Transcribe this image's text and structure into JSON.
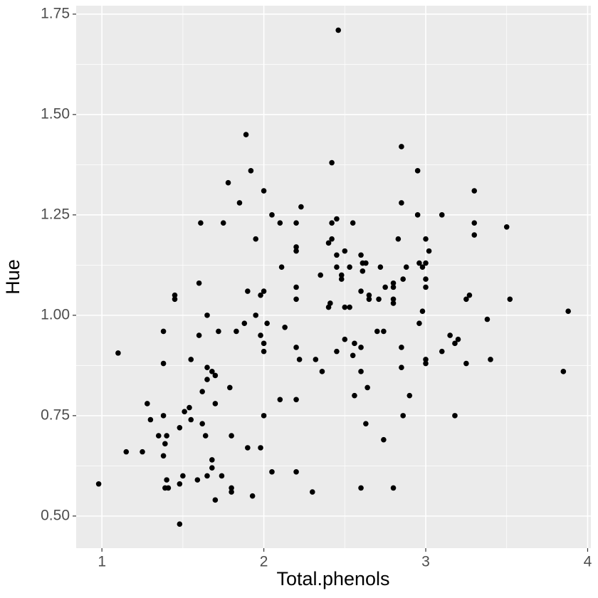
{
  "chart_data": {
    "type": "scatter",
    "x_label": "Total.phenols",
    "y_label": "Hue",
    "x": [
      0.98,
      1.1,
      1.15,
      1.25,
      1.28,
      1.3,
      1.35,
      1.38,
      1.38,
      1.38,
      1.38,
      1.39,
      1.4,
      1.4,
      1.39,
      1.41,
      1.45,
      1.45,
      1.48,
      1.48,
      1.48,
      1.5,
      1.51,
      1.54,
      1.55,
      1.55,
      1.59,
      1.6,
      1.6,
      1.61,
      1.62,
      1.62,
      1.64,
      1.65,
      1.65,
      1.65,
      1.65,
      1.68,
      1.68,
      1.68,
      1.7,
      1.7,
      1.7,
      1.72,
      1.74,
      1.75,
      1.78,
      1.79,
      1.8,
      1.8,
      1.8,
      1.83,
      1.85,
      1.88,
      1.89,
      1.9,
      1.9,
      1.92,
      1.93,
      1.95,
      1.95,
      1.98,
      1.98,
      1.98,
      2.0,
      2.0,
      2.0,
      2.0,
      2.0,
      2.02,
      2.05,
      2.05,
      2.1,
      2.1,
      2.11,
      2.13,
      2.2,
      2.2,
      2.2,
      2.2,
      2.2,
      2.2,
      2.2,
      2.2,
      2.22,
      2.23,
      2.3,
      2.32,
      2.35,
      2.36,
      2.4,
      2.4,
      2.41,
      2.42,
      2.42,
      2.42,
      2.45,
      2.45,
      2.45,
      2.45,
      2.46,
      2.48,
      2.48,
      2.5,
      2.5,
      2.5,
      2.53,
      2.53,
      2.55,
      2.55,
      2.56,
      2.56,
      2.6,
      2.6,
      2.6,
      2.6,
      2.6,
      2.61,
      2.61,
      2.63,
      2.63,
      2.64,
      2.65,
      2.65,
      2.7,
      2.71,
      2.72,
      2.74,
      2.74,
      2.75,
      2.8,
      2.8,
      2.8,
      2.8,
      2.8,
      2.83,
      2.85,
      2.85,
      2.85,
      2.85,
      2.86,
      2.86,
      2.88,
      2.9,
      2.95,
      2.95,
      2.96,
      2.96,
      2.98,
      2.98,
      3.0,
      3.0,
      3.0,
      3.0,
      3.0,
      3.0,
      3.02,
      3.1,
      3.1,
      3.15,
      3.18,
      3.18,
      3.2,
      3.25,
      3.25,
      3.27,
      3.3,
      3.3,
      3.3,
      3.38,
      3.4,
      3.5,
      3.52,
      3.85,
      3.88
    ],
    "values": [
      0.58,
      0.906,
      0.66,
      0.66,
      0.78,
      0.74,
      0.7,
      0.96,
      0.88,
      0.75,
      0.65,
      0.68,
      0.7,
      0.59,
      0.57,
      0.57,
      1.05,
      1.04,
      0.72,
      0.58,
      0.48,
      0.6,
      0.76,
      0.77,
      0.74,
      0.89,
      0.59,
      1.08,
      0.95,
      1.23,
      0.81,
      0.73,
      0.7,
      1.0,
      0.84,
      0.87,
      0.6,
      0.86,
      0.64,
      0.62,
      0.85,
      0.78,
      0.54,
      0.96,
      0.6,
      1.23,
      1.33,
      0.82,
      0.7,
      0.57,
      0.56,
      0.96,
      1.28,
      0.98,
      1.45,
      1.06,
      0.67,
      1.36,
      0.55,
      1.19,
      1.0,
      0.95,
      0.67,
      1.05,
      1.06,
      1.31,
      0.93,
      0.91,
      0.75,
      0.98,
      0.61,
      1.25,
      1.23,
      0.79,
      1.12,
      0.97,
      1.23,
      1.17,
      1.16,
      1.07,
      1.04,
      0.92,
      0.79,
      0.61,
      0.89,
      1.27,
      0.56,
      0.89,
      1.1,
      0.86,
      1.02,
      1.18,
      1.03,
      1.23,
      1.19,
      1.38,
      1.24,
      1.15,
      1.12,
      0.91,
      1.71,
      1.1,
      1.09,
      1.16,
      0.94,
      1.02,
      1.02,
      1.12,
      1.23,
      0.9,
      0.93,
      0.8,
      1.15,
      1.06,
      0.92,
      0.86,
      0.57,
      1.13,
      1.11,
      0.73,
      1.13,
      0.82,
      1.05,
      1.04,
      0.96,
      1.04,
      1.12,
      0.69,
      0.96,
      1.07,
      1.08,
      1.07,
      1.04,
      1.03,
      0.57,
      1.19,
      1.28,
      1.42,
      0.92,
      0.87,
      1.09,
      0.75,
      1.12,
      0.8,
      1.36,
      1.25,
      1.13,
      0.98,
      1.12,
      1.01,
      1.19,
      1.13,
      1.09,
      1.07,
      0.89,
      0.88,
      1.16,
      0.91,
      1.25,
      0.95,
      0.93,
      0.75,
      0.94,
      0.88,
      1.04,
      1.05,
      1.31,
      1.23,
      1.2,
      0.99,
      0.89,
      1.22,
      1.04,
      0.86,
      1.01
    ],
    "color": "#000000",
    "xlim": [
      0.841,
      4.02
    ],
    "ylim": [
      0.42,
      1.771
    ],
    "xticks": [
      1,
      2,
      3,
      4
    ],
    "yticks": [
      {
        "value": 0.5,
        "label": "0.50"
      },
      0.75,
      {
        "value": 1,
        "label": "1.00"
      },
      1.25,
      {
        "value": 1.5,
        "label": "1.50"
      },
      1.75
    ],
    "minor_xticks": [
      1.5,
      2.5,
      3.5
    ],
    "minor_yticks": [
      0.625,
      0.875,
      1.125,
      1.375,
      1.625
    ],
    "grid": true
  }
}
